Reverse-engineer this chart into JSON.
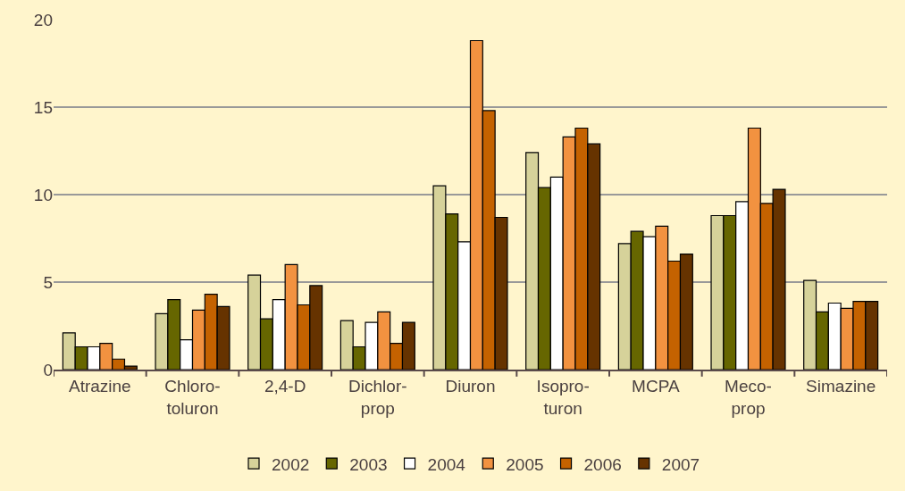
{
  "chart_data": {
    "type": "bar",
    "categories": [
      "Atrazine",
      "Chloro-\ntoluron",
      "2,4-D",
      "Dichlor-\nprop",
      "Diuron",
      "Isopro-\nturon",
      "MCPA",
      "Meco-\nprop",
      "Simazine"
    ],
    "series": [
      {
        "name": "2002",
        "color": "#d6d29a",
        "values": [
          2.1,
          3.2,
          5.4,
          2.8,
          10.5,
          12.4,
          7.2,
          8.8,
          5.1
        ]
      },
      {
        "name": "2003",
        "color": "#666600",
        "values": [
          1.3,
          4.0,
          2.9,
          1.3,
          8.9,
          10.4,
          7.9,
          8.8,
          3.3
        ]
      },
      {
        "name": "2004",
        "color": "#ffffff",
        "values": [
          1.3,
          1.7,
          4.0,
          2.7,
          7.3,
          11.0,
          7.6,
          9.6,
          3.8
        ]
      },
      {
        "name": "2005",
        "color": "#f29240",
        "values": [
          1.5,
          3.4,
          6.0,
          3.3,
          18.8,
          13.3,
          8.2,
          13.8,
          3.5
        ]
      },
      {
        "name": "2006",
        "color": "#c46200",
        "values": [
          0.6,
          4.3,
          3.7,
          1.5,
          14.8,
          13.8,
          6.2,
          9.5,
          3.9
        ]
      },
      {
        "name": "2007",
        "color": "#663300",
        "values": [
          0.2,
          3.6,
          4.8,
          2.7,
          8.7,
          12.9,
          6.6,
          10.3,
          3.9
        ]
      }
    ],
    "ylim": [
      0,
      20
    ],
    "yticks": [
      0,
      5,
      10,
      15,
      20
    ],
    "grid": "y",
    "legend": "bottom"
  }
}
